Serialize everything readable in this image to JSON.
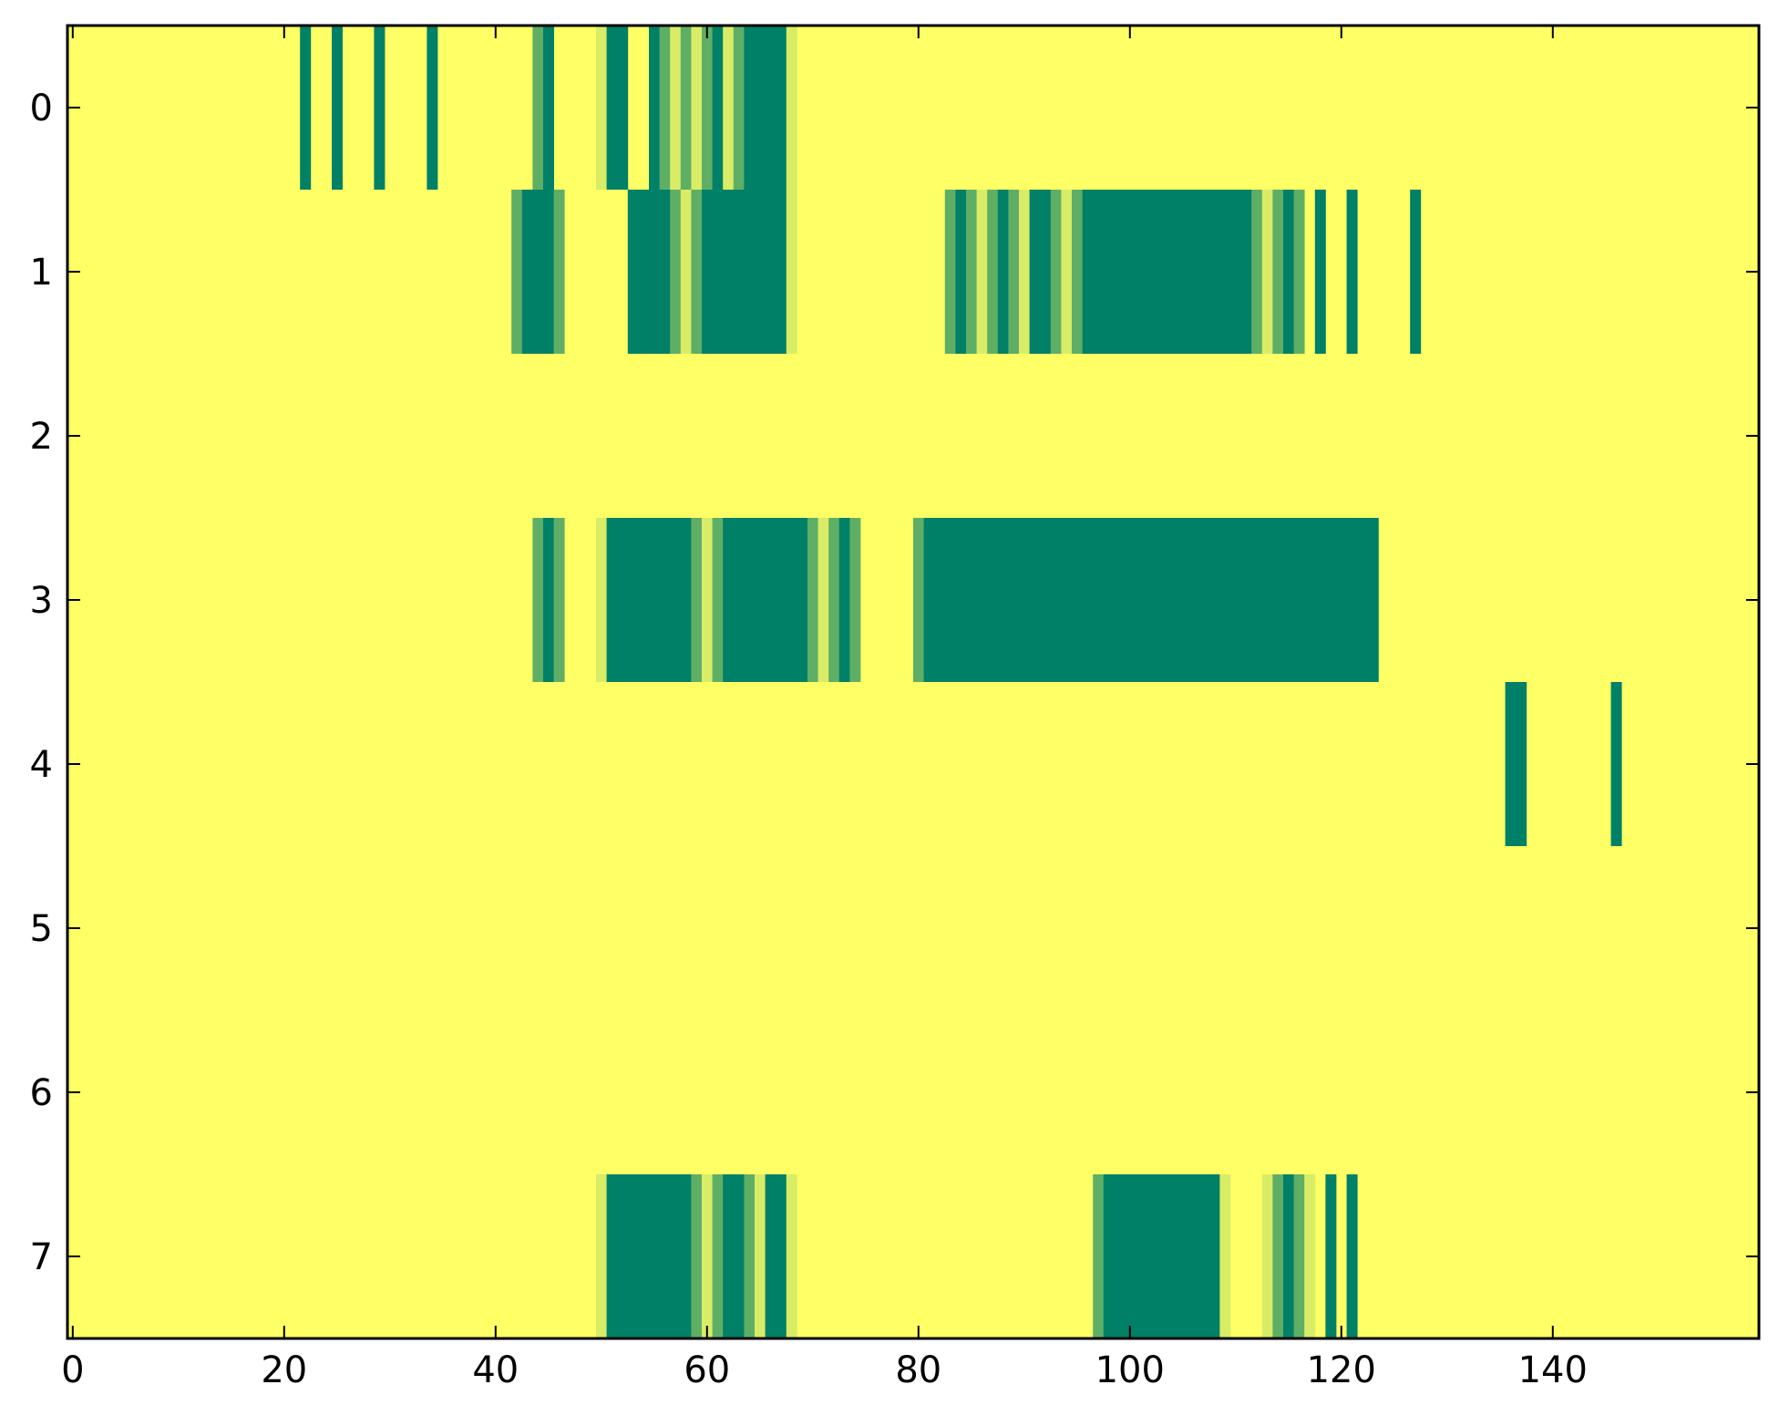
{
  "chart_data": {
    "type": "heatmap",
    "title": "",
    "xlabel": "",
    "ylabel": "",
    "xlim": [
      -0.5,
      159.5
    ],
    "ylim": [
      7.5,
      -0.5
    ],
    "x_ticks": [
      0,
      20,
      40,
      60,
      80,
      100,
      120,
      140
    ],
    "y_ticks": [
      0,
      1,
      2,
      3,
      4,
      5,
      6,
      7
    ],
    "n_rows": 8,
    "n_cols": 160,
    "colormap": "summer_r",
    "colors": {
      "low": "#ffff66",
      "light": "#d9ec66",
      "mid": "#5fae66",
      "high": "#008066"
    },
    "background_value": 0,
    "cell_levels": [
      "low=0",
      "light=1",
      "mid=2",
      "high=3"
    ],
    "rows": [
      {
        "row": 0,
        "runs": [
          [
            22,
            22,
            3
          ],
          [
            25,
            25,
            3
          ],
          [
            29,
            29,
            3
          ],
          [
            34,
            34,
            3
          ],
          [
            44,
            44,
            2
          ],
          [
            45,
            45,
            3
          ],
          [
            50,
            50,
            1
          ],
          [
            51,
            52,
            3
          ],
          [
            55,
            55,
            3
          ],
          [
            56,
            56,
            2
          ],
          [
            57,
            57,
            1
          ],
          [
            58,
            58,
            2
          ],
          [
            59,
            59,
            1
          ],
          [
            60,
            60,
            2
          ],
          [
            61,
            61,
            3
          ],
          [
            62,
            62,
            1
          ],
          [
            63,
            63,
            2
          ],
          [
            64,
            67,
            3
          ],
          [
            68,
            68,
            1
          ]
        ]
      },
      {
        "row": 1,
        "runs": [
          [
            42,
            42,
            2
          ],
          [
            43,
            45,
            3
          ],
          [
            46,
            46,
            2
          ],
          [
            53,
            56,
            3
          ],
          [
            57,
            57,
            2
          ],
          [
            58,
            58,
            1
          ],
          [
            59,
            59,
            2
          ],
          [
            60,
            67,
            3
          ],
          [
            68,
            68,
            1
          ],
          [
            83,
            83,
            2
          ],
          [
            84,
            84,
            3
          ],
          [
            85,
            85,
            2
          ],
          [
            86,
            86,
            1
          ],
          [
            87,
            87,
            2
          ],
          [
            88,
            88,
            3
          ],
          [
            89,
            89,
            2
          ],
          [
            90,
            90,
            1
          ],
          [
            91,
            92,
            3
          ],
          [
            93,
            93,
            2
          ],
          [
            94,
            94,
            1
          ],
          [
            95,
            95,
            2
          ],
          [
            96,
            111,
            3
          ],
          [
            112,
            112,
            2
          ],
          [
            113,
            113,
            1
          ],
          [
            114,
            114,
            2
          ],
          [
            115,
            115,
            3
          ],
          [
            116,
            116,
            2
          ],
          [
            118,
            118,
            3
          ],
          [
            121,
            121,
            3
          ],
          [
            127,
            127,
            3
          ]
        ]
      },
      {
        "row": 2,
        "runs": []
      },
      {
        "row": 3,
        "runs": [
          [
            44,
            44,
            2
          ],
          [
            45,
            45,
            3
          ],
          [
            46,
            46,
            2
          ],
          [
            50,
            50,
            1
          ],
          [
            51,
            58,
            3
          ],
          [
            59,
            59,
            2
          ],
          [
            60,
            60,
            1
          ],
          [
            61,
            61,
            2
          ],
          [
            62,
            69,
            3
          ],
          [
            70,
            70,
            2
          ],
          [
            71,
            71,
            1
          ],
          [
            72,
            72,
            2
          ],
          [
            73,
            73,
            3
          ],
          [
            74,
            74,
            2
          ],
          [
            80,
            80,
            2
          ],
          [
            81,
            123,
            3
          ]
        ]
      },
      {
        "row": 4,
        "runs": [
          [
            136,
            137,
            3
          ],
          [
            146,
            146,
            3
          ]
        ]
      },
      {
        "row": 5,
        "runs": []
      },
      {
        "row": 6,
        "runs": []
      },
      {
        "row": 7,
        "runs": [
          [
            50,
            50,
            1
          ],
          [
            51,
            58,
            3
          ],
          [
            59,
            59,
            2
          ],
          [
            60,
            60,
            1
          ],
          [
            61,
            61,
            2
          ],
          [
            62,
            63,
            3
          ],
          [
            64,
            64,
            2
          ],
          [
            65,
            65,
            1
          ],
          [
            66,
            67,
            3
          ],
          [
            68,
            68,
            1
          ],
          [
            97,
            97,
            2
          ],
          [
            98,
            108,
            3
          ],
          [
            109,
            109,
            1
          ],
          [
            113,
            113,
            1
          ],
          [
            114,
            114,
            2
          ],
          [
            115,
            115,
            3
          ],
          [
            116,
            116,
            2
          ],
          [
            117,
            117,
            1
          ],
          [
            119,
            119,
            3
          ],
          [
            121,
            121,
            3
          ]
        ]
      }
    ]
  }
}
